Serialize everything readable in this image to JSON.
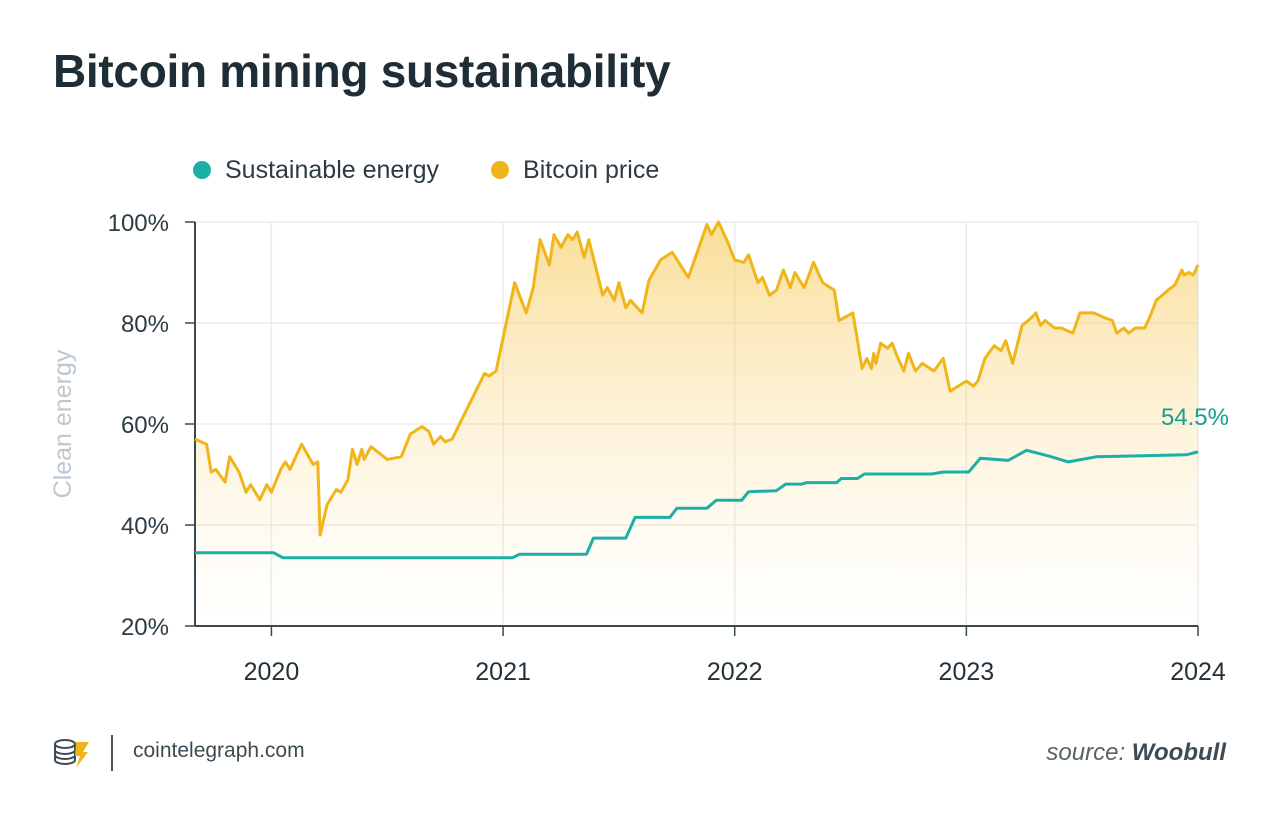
{
  "chart_data": {
    "type": "line",
    "title": "Bitcoin mining sustainability",
    "ylabel": "Clean energy",
    "xlabel": "",
    "ylim": [
      20,
      100
    ],
    "y_ticks": [
      "20%",
      "40%",
      "60%",
      "80%",
      "100%"
    ],
    "y_tick_values": [
      20,
      40,
      60,
      80,
      100
    ],
    "x_ticks": [
      "2020",
      "2021",
      "2022",
      "2023",
      "2024"
    ],
    "x_tick_values": [
      2020.0,
      2021.0,
      2022.0,
      2023.0,
      2024.0
    ],
    "xlim": [
      2019.67,
      2024.0
    ],
    "grid": true,
    "legend_position": "top-left",
    "series": [
      {
        "name": "Sustainable energy",
        "color": "#1bb0a6",
        "end_label": "54.5%",
        "points": [
          [
            2019.67,
            34.5
          ],
          [
            2020.01,
            34.5
          ],
          [
            2020.05,
            33.5
          ],
          [
            2020.5,
            33.5
          ],
          [
            2020.95,
            33.5
          ],
          [
            2021.04,
            33.5
          ],
          [
            2021.07,
            34.2
          ],
          [
            2021.36,
            34.2
          ],
          [
            2021.39,
            37.4
          ],
          [
            2021.53,
            37.4
          ],
          [
            2021.57,
            41.5
          ],
          [
            2021.72,
            41.5
          ],
          [
            2021.75,
            43.3
          ],
          [
            2021.88,
            43.3
          ],
          [
            2021.92,
            44.9
          ],
          [
            2022.03,
            44.9
          ],
          [
            2022.06,
            46.6
          ],
          [
            2022.18,
            46.8
          ],
          [
            2022.22,
            48.1
          ],
          [
            2022.29,
            48.1
          ],
          [
            2022.31,
            48.4
          ],
          [
            2022.44,
            48.4
          ],
          [
            2022.46,
            49.2
          ],
          [
            2022.53,
            49.2
          ],
          [
            2022.56,
            50.1
          ],
          [
            2022.85,
            50.1
          ],
          [
            2022.9,
            50.5
          ],
          [
            2023.01,
            50.5
          ],
          [
            2023.06,
            53.2
          ],
          [
            2023.18,
            52.8
          ],
          [
            2023.26,
            54.8
          ],
          [
            2023.36,
            53.6
          ],
          [
            2023.44,
            52.5
          ],
          [
            2023.56,
            53.5
          ],
          [
            2023.95,
            53.9
          ],
          [
            2024.0,
            54.5
          ]
        ]
      },
      {
        "name": "Bitcoin price",
        "color": "#f0b51a",
        "points": [
          [
            2019.67,
            57
          ],
          [
            2019.72,
            56
          ],
          [
            2019.74,
            50.5
          ],
          [
            2019.76,
            51
          ],
          [
            2019.8,
            48.5
          ],
          [
            2019.82,
            53.5
          ],
          [
            2019.86,
            50.5
          ],
          [
            2019.89,
            46.5
          ],
          [
            2019.91,
            48
          ],
          [
            2019.95,
            45
          ],
          [
            2019.98,
            48
          ],
          [
            2020.0,
            46.5
          ],
          [
            2020.04,
            51
          ],
          [
            2020.06,
            52.5
          ],
          [
            2020.08,
            51
          ],
          [
            2020.13,
            56
          ],
          [
            2020.18,
            52
          ],
          [
            2020.2,
            52.5
          ],
          [
            2020.21,
            38
          ],
          [
            2020.24,
            44
          ],
          [
            2020.28,
            47
          ],
          [
            2020.3,
            46.5
          ],
          [
            2020.33,
            49
          ],
          [
            2020.35,
            55
          ],
          [
            2020.37,
            52
          ],
          [
            2020.39,
            55
          ],
          [
            2020.4,
            53
          ],
          [
            2020.43,
            55.5
          ],
          [
            2020.5,
            53
          ],
          [
            2020.56,
            53.5
          ],
          [
            2020.6,
            58
          ],
          [
            2020.65,
            59.5
          ],
          [
            2020.68,
            58.5
          ],
          [
            2020.7,
            56
          ],
          [
            2020.73,
            57.5
          ],
          [
            2020.75,
            56.5
          ],
          [
            2020.78,
            57
          ],
          [
            2020.92,
            70
          ],
          [
            2020.94,
            69.5
          ],
          [
            2020.97,
            70.5
          ],
          [
            2021.05,
            88
          ],
          [
            2021.1,
            82
          ],
          [
            2021.13,
            87
          ],
          [
            2021.16,
            96.5
          ],
          [
            2021.2,
            91.5
          ],
          [
            2021.22,
            97.5
          ],
          [
            2021.25,
            95
          ],
          [
            2021.28,
            97.5
          ],
          [
            2021.3,
            96.5
          ],
          [
            2021.32,
            98
          ],
          [
            2021.35,
            93
          ],
          [
            2021.37,
            96.5
          ],
          [
            2021.43,
            85.5
          ],
          [
            2021.45,
            87
          ],
          [
            2021.48,
            84.5
          ],
          [
            2021.5,
            88
          ],
          [
            2021.53,
            83
          ],
          [
            2021.55,
            84.5
          ],
          [
            2021.6,
            82
          ],
          [
            2021.63,
            88.5
          ],
          [
            2021.68,
            92.5
          ],
          [
            2021.73,
            94
          ],
          [
            2021.8,
            89
          ],
          [
            2021.88,
            99.5
          ],
          [
            2021.9,
            97.5
          ],
          [
            2021.93,
            100
          ],
          [
            2021.97,
            96
          ],
          [
            2022.0,
            92.5
          ],
          [
            2022.04,
            92
          ],
          [
            2022.06,
            93.5
          ],
          [
            2022.1,
            88
          ],
          [
            2022.12,
            89
          ],
          [
            2022.15,
            85.5
          ],
          [
            2022.18,
            86.5
          ],
          [
            2022.21,
            90.5
          ],
          [
            2022.24,
            87
          ],
          [
            2022.26,
            90
          ],
          [
            2022.3,
            87
          ],
          [
            2022.34,
            92
          ],
          [
            2022.38,
            88
          ],
          [
            2022.43,
            86.5
          ],
          [
            2022.45,
            80.5
          ],
          [
            2022.51,
            82
          ],
          [
            2022.55,
            71
          ],
          [
            2022.57,
            73
          ],
          [
            2022.59,
            71
          ],
          [
            2022.6,
            74
          ],
          [
            2022.61,
            72
          ],
          [
            2022.63,
            76
          ],
          [
            2022.66,
            75
          ],
          [
            2022.68,
            76
          ],
          [
            2022.7,
            73.5
          ],
          [
            2022.73,
            70.5
          ],
          [
            2022.75,
            74
          ],
          [
            2022.78,
            70.5
          ],
          [
            2022.81,
            72
          ],
          [
            2022.86,
            70.5
          ],
          [
            2022.9,
            73
          ],
          [
            2022.93,
            66.5
          ],
          [
            2023.0,
            68.5
          ],
          [
            2023.03,
            67.5
          ],
          [
            2023.05,
            68.5
          ],
          [
            2023.08,
            73
          ],
          [
            2023.12,
            75.5
          ],
          [
            2023.15,
            74.5
          ],
          [
            2023.17,
            76.5
          ],
          [
            2023.2,
            72
          ],
          [
            2023.24,
            79.5
          ],
          [
            2023.28,
            81
          ],
          [
            2023.3,
            82
          ],
          [
            2023.32,
            79.5
          ],
          [
            2023.34,
            80.5
          ],
          [
            2023.38,
            79
          ],
          [
            2023.41,
            79
          ],
          [
            2023.46,
            78
          ],
          [
            2023.49,
            82
          ],
          [
            2023.55,
            82
          ],
          [
            2023.6,
            81
          ],
          [
            2023.63,
            80.5
          ],
          [
            2023.65,
            78
          ],
          [
            2023.68,
            79
          ],
          [
            2023.7,
            78
          ],
          [
            2023.73,
            79
          ],
          [
            2023.77,
            79
          ],
          [
            2023.79,
            81
          ],
          [
            2023.82,
            84.5
          ],
          [
            2023.87,
            86.5
          ],
          [
            2023.9,
            87.5
          ],
          [
            2023.93,
            90.5
          ],
          [
            2023.94,
            89.5
          ],
          [
            2023.96,
            90
          ],
          [
            2023.98,
            89.5
          ],
          [
            2024.0,
            91.5
          ]
        ]
      }
    ]
  },
  "colors": {
    "sustainable": "#1bb0a6",
    "price": "#f0b51a",
    "end_label": "#15a08f",
    "axis": "#3b4850",
    "grid": "#ebebeb",
    "ylabel": "#bdc8d1"
  },
  "footer": {
    "site": "cointelegraph.com",
    "source_prefix": "source: ",
    "source_name": "Woobull",
    "logo_icon": "cointelegraph-logo-icon"
  }
}
